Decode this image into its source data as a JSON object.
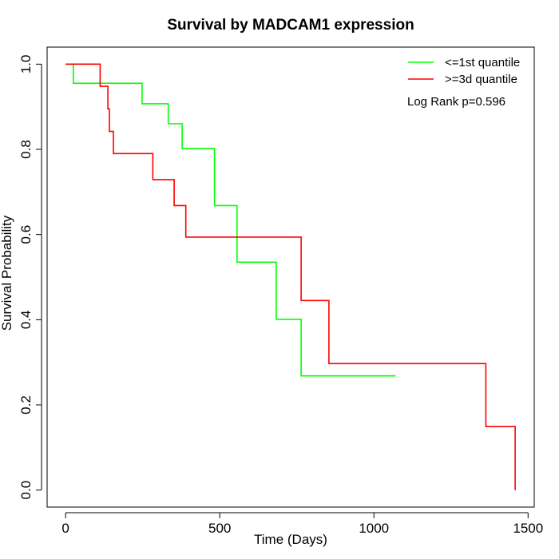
{
  "chart_data": {
    "type": "line",
    "step": true,
    "title": "Survival by MADCAM1 expression",
    "xlabel": "Time (Days)",
    "ylabel": "Survival Probability",
    "xlim": [
      -60,
      1520
    ],
    "ylim": [
      -0.04,
      1.04
    ],
    "xticks": [
      0,
      500,
      1000,
      1500
    ],
    "yticks": [
      0.0,
      0.2,
      0.4,
      0.6,
      0.8,
      1.0
    ],
    "xtick_labels": [
      "0",
      "500",
      "1000",
      "1500"
    ],
    "ytick_labels": [
      "0.0",
      "0.2",
      "0.4",
      "0.6",
      "0.8",
      "1.0"
    ],
    "grid": false,
    "legend_position": "top-right",
    "annotation": "Log Rank p=0.596",
    "series": [
      {
        "name": "<=1st quantile",
        "color": "#00ff00",
        "x": [
          0,
          25,
          248,
          333,
          378,
          483,
          556,
          683,
          764,
          1070
        ],
        "y": [
          1.0,
          0.955,
          0.907,
          0.86,
          0.802,
          0.668,
          0.535,
          0.401,
          0.268,
          0.268
        ]
      },
      {
        "name": ">=3d quantile",
        "color": "#ff0000",
        "x": [
          0,
          112,
          137,
          142,
          155,
          283,
          352,
          390,
          764,
          854,
          1363,
          1458
        ],
        "y": [
          1.0,
          0.948,
          0.895,
          0.842,
          0.79,
          0.729,
          0.668,
          0.594,
          0.445,
          0.297,
          0.149,
          0.0
        ]
      }
    ]
  }
}
